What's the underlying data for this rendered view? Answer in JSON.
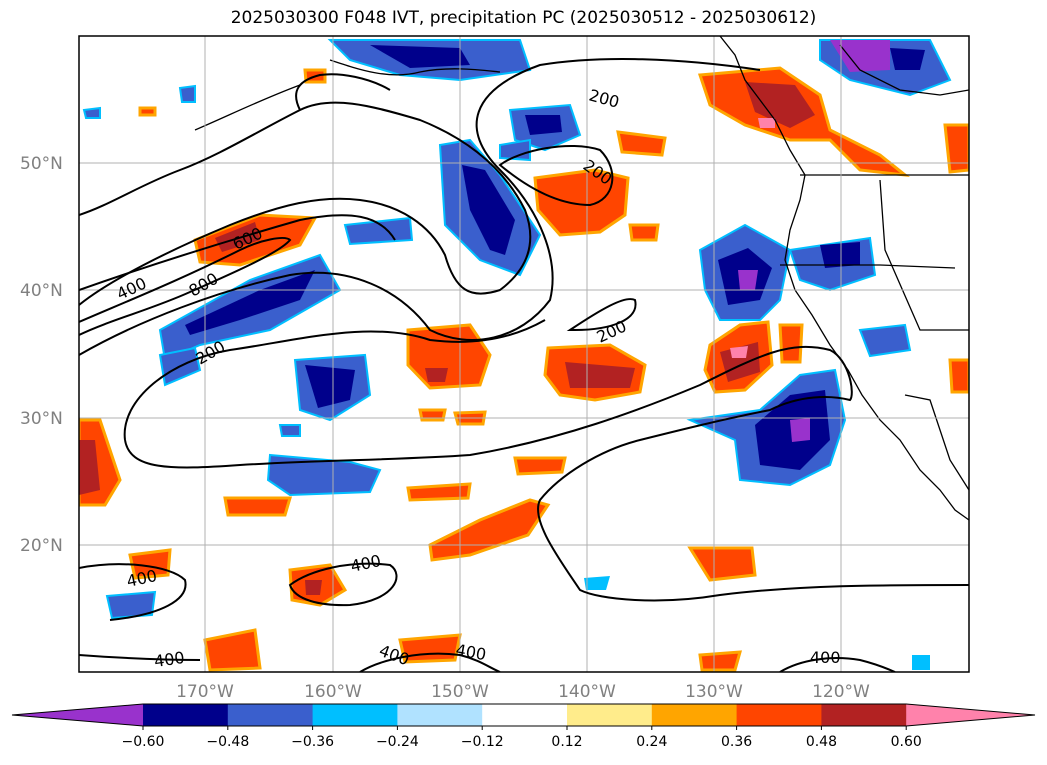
{
  "title": "2025030300 F048 IVT, precipitation PC (2025030512 - 2025030612)",
  "map": {
    "lat_labels": [
      "50°N",
      "40°N",
      "30°N",
      "20°N"
    ],
    "lon_labels": [
      "170°W",
      "160°W",
      "150°W",
      "140°W",
      "130°W",
      "120°W"
    ],
    "contour_labels": [
      "200",
      "200",
      "400",
      "600",
      "800",
      "200",
      "200",
      "400",
      "400",
      "400",
      "400",
      "400",
      "400"
    ]
  },
  "colorbar": {
    "ticks": [
      "−0.60",
      "−0.48",
      "−0.36",
      "−0.24",
      "−0.12",
      "0.12",
      "0.24",
      "0.36",
      "0.48",
      "0.60"
    ],
    "colors": [
      "#9932cc",
      "#00008b",
      "#3a5fcd",
      "#00bfff",
      "#b0e2ff",
      "#ffffff",
      "#ffec8b",
      "#ffa500",
      "#ff4500",
      "#b22222",
      "#ff82ab"
    ]
  }
}
